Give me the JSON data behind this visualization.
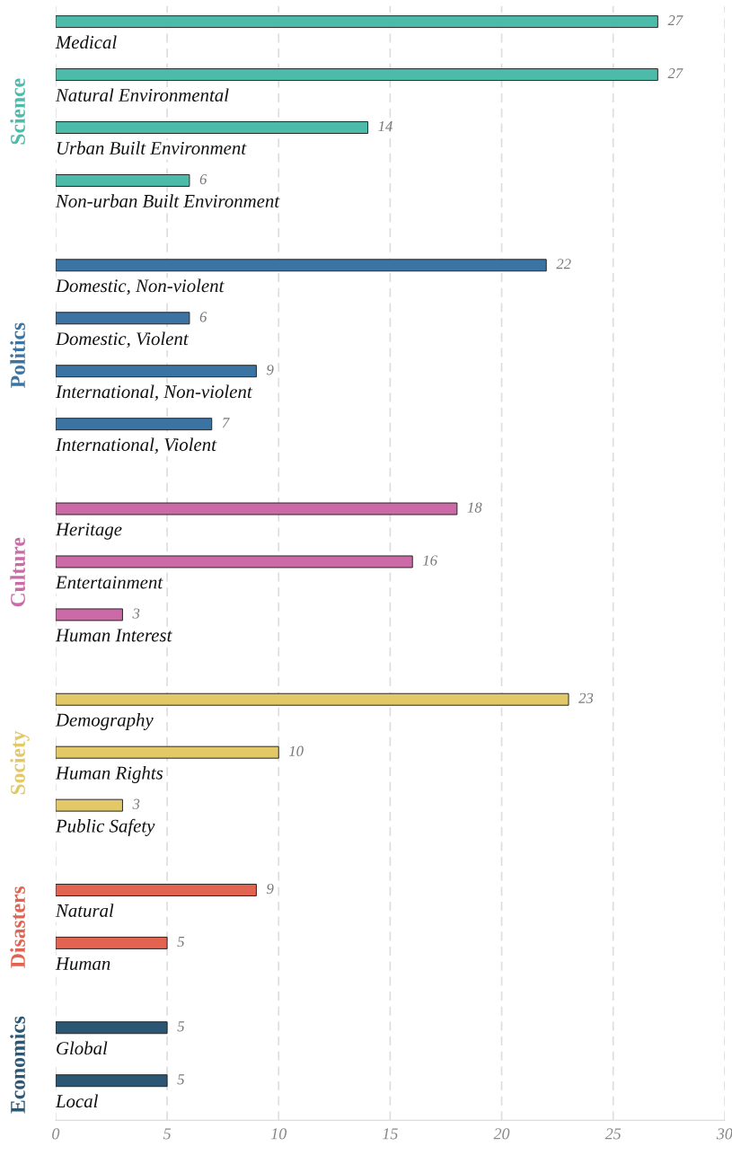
{
  "chart_data": {
    "type": "bar",
    "orientation": "horizontal",
    "categories": [
      "Medical",
      "Natural Environmental",
      "Urban Built Environment",
      "Non-urban Built Environment",
      "Domestic, Non-violent",
      "Domestic, Violent",
      "International, Non-violent",
      "International, Violent",
      "Heritage",
      "Entertainment",
      "Human Interest",
      "Demography",
      "Human Rights",
      "Public Safety",
      "Natural",
      "Human",
      "Global",
      "Local"
    ],
    "series": [
      {
        "name": "Science",
        "color": "#4dbbaa",
        "values": [
          27,
          27,
          14,
          6,
          null,
          null,
          null,
          null,
          null,
          null,
          null,
          null,
          null,
          null,
          null,
          null,
          null,
          null
        ]
      },
      {
        "name": "Politics",
        "color": "#3b73a3",
        "values": [
          null,
          null,
          null,
          null,
          22,
          6,
          9,
          7,
          null,
          null,
          null,
          null,
          null,
          null,
          null,
          null,
          null,
          null
        ]
      },
      {
        "name": "Culture",
        "color": "#cc6aa8",
        "values": [
          null,
          null,
          null,
          null,
          null,
          null,
          null,
          null,
          18,
          16,
          3,
          null,
          null,
          null,
          null,
          null,
          null,
          null
        ]
      },
      {
        "name": "Society",
        "color": "#e2c867",
        "values": [
          null,
          null,
          null,
          null,
          null,
          null,
          null,
          null,
          null,
          null,
          null,
          23,
          10,
          3,
          null,
          null,
          null,
          null
        ]
      },
      {
        "name": "Disasters",
        "color": "#e2634f",
        "values": [
          null,
          null,
          null,
          null,
          null,
          null,
          null,
          null,
          null,
          null,
          null,
          null,
          null,
          null,
          9,
          5,
          null,
          null
        ]
      },
      {
        "name": "Economics",
        "color": "#2b5674",
        "values": [
          null,
          null,
          null,
          null,
          null,
          null,
          null,
          null,
          null,
          null,
          null,
          null,
          null,
          null,
          null,
          null,
          5,
          5
        ]
      }
    ],
    "xlim": [
      0,
      30
    ],
    "xticks": [
      0,
      5,
      10,
      15,
      20,
      25,
      30
    ],
    "grid": "x",
    "data_labels": true,
    "legend": false
  }
}
